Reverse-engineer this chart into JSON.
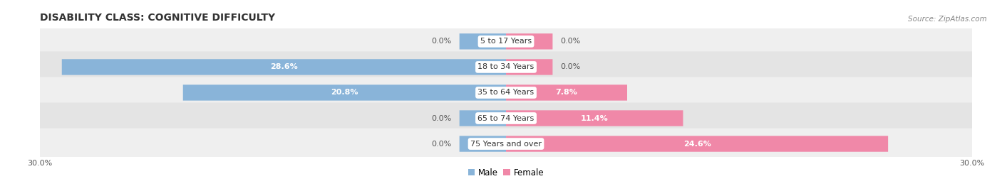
{
  "title": "DISABILITY CLASS: COGNITIVE DIFFICULTY",
  "source": "Source: ZipAtlas.com",
  "categories": [
    "5 to 17 Years",
    "18 to 34 Years",
    "35 to 64 Years",
    "65 to 74 Years",
    "75 Years and over"
  ],
  "male_values": [
    0.0,
    28.6,
    20.8,
    0.0,
    0.0
  ],
  "female_values": [
    0.0,
    0.0,
    7.8,
    11.4,
    24.6
  ],
  "male_color": "#89b4d9",
  "female_color": "#f088a8",
  "row_bg_even": "#efefef",
  "row_bg_odd": "#e4e4e4",
  "xlim": 30.0,
  "stub_size": 3.0,
  "title_fontsize": 10,
  "label_fontsize": 8,
  "tick_fontsize": 8,
  "category_fontsize": 8,
  "background_color": "#ffffff",
  "legend_male": "Male",
  "legend_female": "Female"
}
